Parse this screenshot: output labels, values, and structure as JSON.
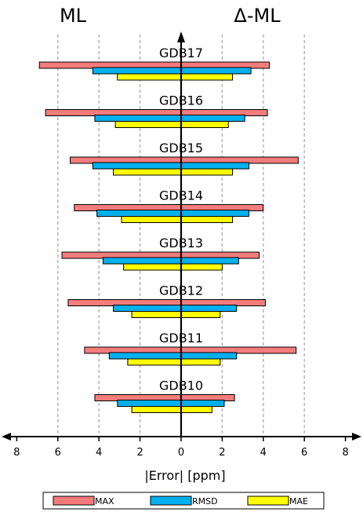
{
  "chart_data": {
    "type": "bar",
    "orientation": "horizontal-butterfly",
    "left_title": "ML",
    "right_title": "Δ-ML",
    "xlabel": "|Error| [ppm]",
    "xlim": [
      -8,
      8
    ],
    "xticks": [
      8,
      6,
      4,
      2,
      0,
      2,
      4,
      6,
      8
    ],
    "grid": "vertical-dashed",
    "legend_position": "bottom",
    "categories": [
      "GDB17",
      "GDB16",
      "GDB15",
      "GDB14",
      "GDB13",
      "GDB12",
      "GDB11",
      "GDB10"
    ],
    "series": [
      {
        "name": "MAX",
        "color": "#f47c7c",
        "left": [
          6.9,
          6.6,
          5.4,
          5.2,
          5.8,
          5.5,
          4.7,
          4.2
        ],
        "right": [
          4.3,
          4.2,
          5.7,
          4.0,
          3.8,
          4.1,
          5.6,
          2.6
        ]
      },
      {
        "name": "RMSD",
        "color": "#00b0f0",
        "left": [
          4.3,
          4.2,
          4.3,
          4.1,
          3.8,
          3.3,
          3.5,
          3.1
        ],
        "right": [
          3.4,
          3.1,
          3.3,
          3.3,
          2.8,
          2.7,
          2.7,
          2.1
        ]
      },
      {
        "name": "MAE",
        "color": "#ffff00",
        "left": [
          3.1,
          3.2,
          3.3,
          2.9,
          2.8,
          2.4,
          2.6,
          2.4
        ],
        "right": [
          2.5,
          2.3,
          2.5,
          2.5,
          2.0,
          1.9,
          1.9,
          1.5
        ]
      }
    ]
  }
}
